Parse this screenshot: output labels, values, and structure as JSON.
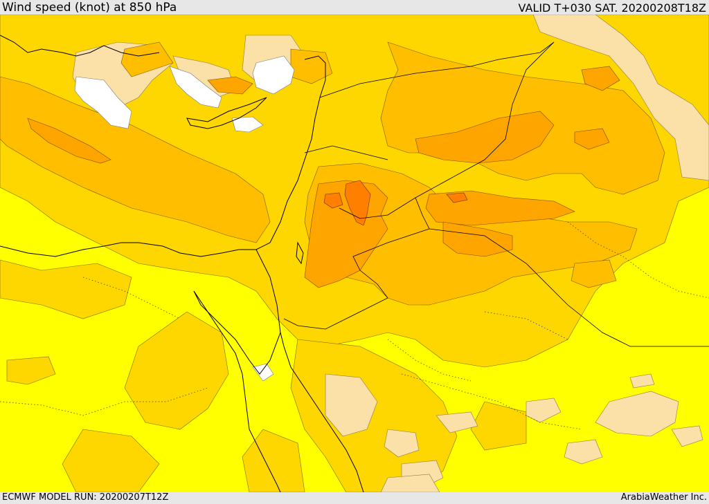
{
  "header": {
    "title": "Wind speed (knot) at 850 hPa",
    "valid": "VALID T+030 SAT. 20200208T18Z"
  },
  "footer": {
    "model_run": "ECMWF MODEL RUN: 20200207T12Z",
    "credit": "ArabiaWeather Inc."
  },
  "colors": {
    "background_band": "#ffff00",
    "light_band": "#fbe0a8",
    "medium_band": "#ffd700",
    "strong_band": "#ffbf00",
    "stronger_band": "#ffa500",
    "strongest_band": "#ff7f00",
    "calm": "#ffffff"
  }
}
